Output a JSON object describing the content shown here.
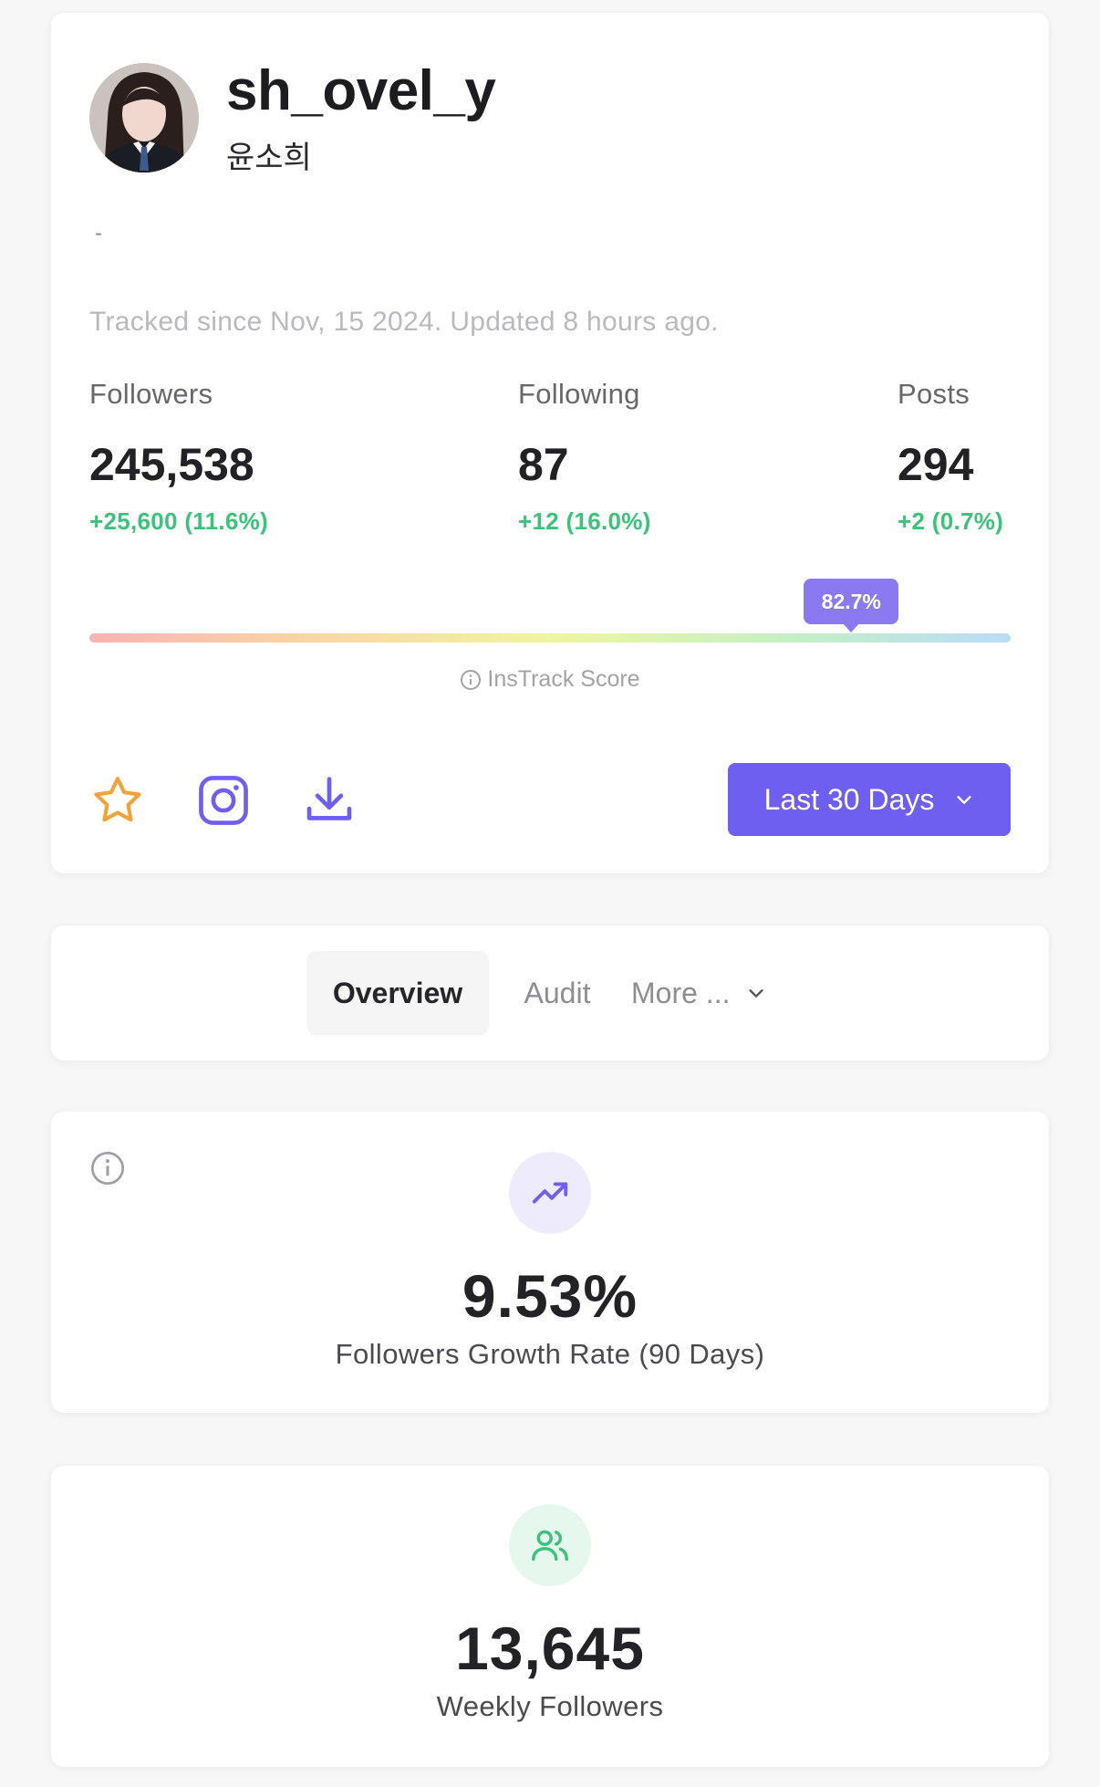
{
  "profile": {
    "username": "sh_ovel_y",
    "full_name": "윤소희",
    "bio": "-",
    "tracked_text": "Tracked since Nov, 15 2024. Updated 8 hours ago."
  },
  "stats": {
    "followers": {
      "label": "Followers",
      "value": "245,538",
      "change": "+25,600 (11.6%)"
    },
    "following": {
      "label": "Following",
      "value": "87",
      "change": "+12 (16.0%)"
    },
    "posts": {
      "label": "Posts",
      "value": "294",
      "change": "+2 (0.7%)"
    }
  },
  "score": {
    "value_text": "82.7%",
    "value": 82.7,
    "label": "InsTrack Score"
  },
  "actions": {
    "favorite_icon": "star-icon",
    "instagram_icon": "instagram-icon",
    "download_icon": "download-icon",
    "period_label": "Last 30 Days"
  },
  "tabs": [
    {
      "label": "Overview",
      "active": true
    },
    {
      "label": "Audit",
      "active": false
    },
    {
      "label": "More ...",
      "active": false
    }
  ],
  "metrics": {
    "growth": {
      "value": "9.53%",
      "label": "Followers Growth Rate (90 Days)",
      "icon": "trending-up-icon"
    },
    "weekly": {
      "value": "13,645",
      "label": "Weekly Followers",
      "icon": "users-icon"
    }
  },
  "colors": {
    "accent": "#6f5ff0",
    "positive": "#3cc27a",
    "star": "#f0a33a"
  }
}
